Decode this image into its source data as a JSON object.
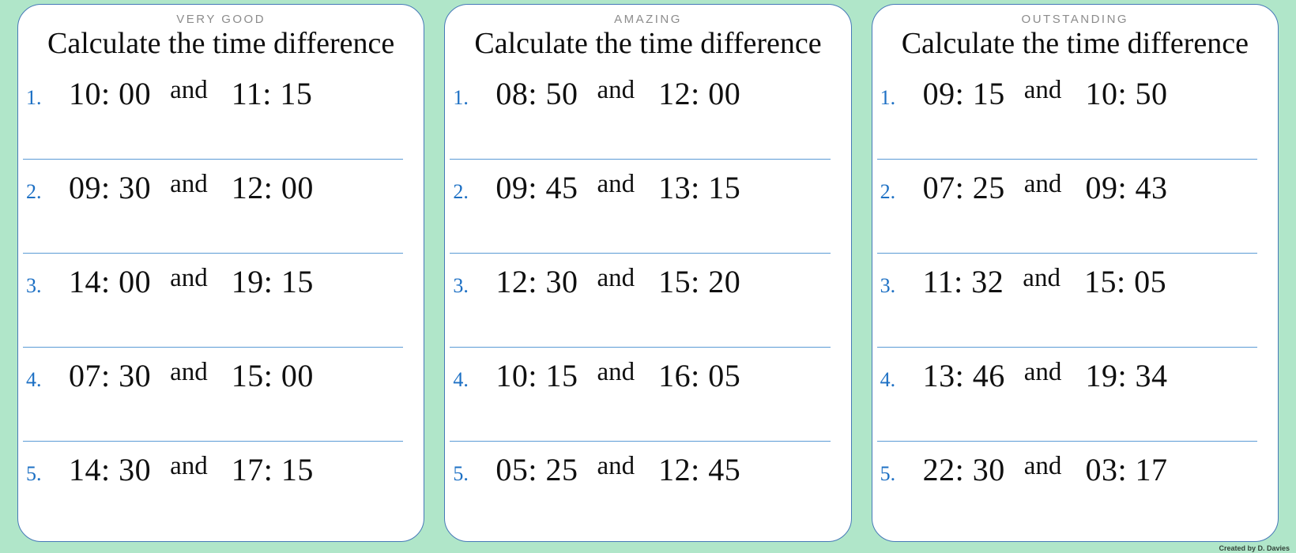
{
  "credit": "Created by D. Davies",
  "colors": {
    "background": "#b0e6c9",
    "panel_border": "#4679b7",
    "divider": "#5b9bd5",
    "item_number": "#1d70c4",
    "badge_text": "#8c8c8c"
  },
  "panels": [
    {
      "badge": "VERY GOOD",
      "title": "Calculate the time difference",
      "items": [
        {
          "num": "1.",
          "time1": "10: 00",
          "conj": "and",
          "time2": "11: 15"
        },
        {
          "num": "2.",
          "time1": "09: 30",
          "conj": "and",
          "time2": "12: 00"
        },
        {
          "num": "3.",
          "time1": "14: 00",
          "conj": "and",
          "time2": "19: 15"
        },
        {
          "num": "4.",
          "time1": "07: 30",
          "conj": "and",
          "time2": "15: 00"
        },
        {
          "num": "5.",
          "time1": "14: 30",
          "conj": "and",
          "time2": "17: 15"
        }
      ]
    },
    {
      "badge": "AMAZING",
      "title": "Calculate the time difference",
      "items": [
        {
          "num": "1.",
          "time1": "08: 50",
          "conj": "and",
          "time2": "12: 00"
        },
        {
          "num": "2.",
          "time1": "09: 45",
          "conj": "and",
          "time2": "13: 15"
        },
        {
          "num": "3.",
          "time1": "12: 30",
          "conj": "and",
          "time2": "15: 20"
        },
        {
          "num": "4.",
          "time1": "10: 15",
          "conj": "and",
          "time2": "16: 05"
        },
        {
          "num": "5.",
          "time1": "05: 25",
          "conj": "and",
          "time2": "12: 45"
        }
      ]
    },
    {
      "badge": "OUTSTANDING",
      "title": "Calculate the time difference",
      "items": [
        {
          "num": "1.",
          "time1": "09: 15",
          "conj": "and",
          "time2": "10: 50"
        },
        {
          "num": "2.",
          "time1": "07: 25",
          "conj": "and",
          "time2": "09: 43"
        },
        {
          "num": "3.",
          "time1": "11: 32",
          "conj": "and",
          "time2": "15: 05"
        },
        {
          "num": "4.",
          "time1": "13: 46",
          "conj": "and",
          "time2": "19: 34"
        },
        {
          "num": "5.",
          "time1": "22: 30",
          "conj": "and",
          "time2": "03: 17"
        }
      ]
    }
  ]
}
